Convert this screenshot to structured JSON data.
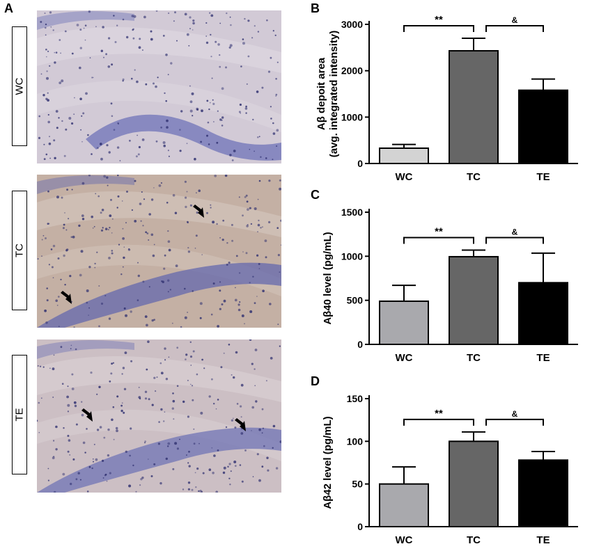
{
  "panel_a": {
    "letter": "A",
    "images": [
      {
        "label": "WC",
        "tone": "#d2cad6",
        "band": "#6f73b8",
        "arrows": 0
      },
      {
        "label": "TC",
        "tone": "#c4b0a4",
        "band": "#6468ad",
        "arrows": 2
      },
      {
        "label": "TE",
        "tone": "#ccbfc4",
        "band": "#7074b6",
        "arrows": 2
      }
    ]
  },
  "chart_data": [
    {
      "letter": "B",
      "type": "bar",
      "categories": [
        "WC",
        "TC",
        "TE"
      ],
      "values": [
        330,
        2430,
        1580
      ],
      "errors": [
        80,
        270,
        240
      ],
      "colors": [
        "#d3d3d3",
        "#666666",
        "#000000"
      ],
      "ylabel": "Aβ depoit area (avg. integrated intensity)",
      "ylabel_lines": [
        "Aβ depoit area",
        "(avg. integrated intensity)"
      ],
      "ylim": [
        0,
        3000
      ],
      "yticks": [
        0,
        1000,
        2000,
        3000
      ],
      "annotations": [
        {
          "label": "**",
          "from": 0,
          "to": 1
        },
        {
          "label": "&",
          "from": 1,
          "to": 2
        }
      ]
    },
    {
      "letter": "C",
      "type": "bar",
      "categories": [
        "WC",
        "TC",
        "TE"
      ],
      "values": [
        490,
        995,
        700
      ],
      "errors": [
        180,
        75,
        335
      ],
      "colors": [
        "#a9a9ad",
        "#666666",
        "#000000"
      ],
      "ylabel": "Aβ40 level (pg/mL)",
      "ylabel_lines": [
        "Aβ40 level (pg/mL)"
      ],
      "ylim": [
        0,
        1500
      ],
      "yticks": [
        0,
        500,
        1000,
        1500
      ],
      "annotations": [
        {
          "label": "**",
          "from": 0,
          "to": 1
        },
        {
          "label": "&",
          "from": 1,
          "to": 2
        }
      ]
    },
    {
      "letter": "D",
      "type": "bar",
      "categories": [
        "WC",
        "TC",
        "TE"
      ],
      "values": [
        50,
        100,
        78
      ],
      "errors": [
        20,
        11,
        10
      ],
      "colors": [
        "#a9a9ad",
        "#666666",
        "#000000"
      ],
      "ylabel": "Aβ42 level (pg/mL)",
      "ylabel_lines": [
        "Aβ42 level (pg/mL)"
      ],
      "ylim": [
        0,
        150
      ],
      "yticks": [
        0,
        50,
        100,
        150
      ],
      "annotations": [
        {
          "label": "**",
          "from": 0,
          "to": 1
        },
        {
          "label": "&",
          "from": 1,
          "to": 2
        }
      ]
    }
  ]
}
